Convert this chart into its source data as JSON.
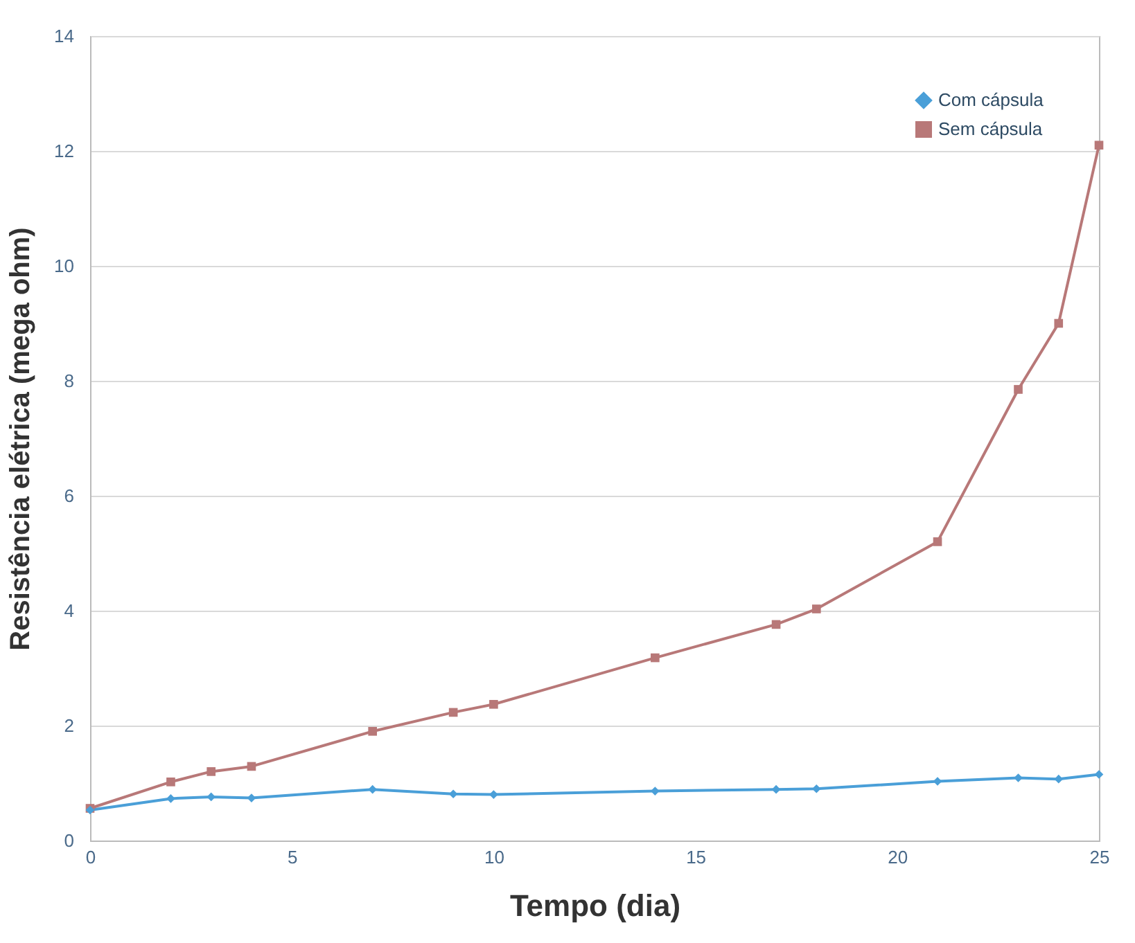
{
  "chart_data": {
    "type": "line",
    "xlabel": "Tempo (dia)",
    "ylabel": "Resistência elétrica (mega ohm)",
    "x": [
      0,
      2,
      3,
      4,
      7,
      9,
      10,
      14,
      17,
      18,
      21,
      23,
      24,
      25
    ],
    "series": [
      {
        "name": "Com cápsula",
        "color": "#4a9fd8",
        "marker": "diamond",
        "values": [
          0.53,
          0.73,
          0.76,
          0.74,
          0.89,
          0.81,
          0.8,
          0.86,
          0.89,
          0.9,
          1.03,
          1.09,
          1.07,
          1.15
        ]
      },
      {
        "name": "Sem cápsula",
        "color": "#b87878",
        "marker": "square",
        "values": [
          0.56,
          1.02,
          1.2,
          1.29,
          1.9,
          2.23,
          2.37,
          3.18,
          3.76,
          4.03,
          5.2,
          7.85,
          9.0,
          12.1
        ]
      }
    ],
    "xlim": [
      0,
      25
    ],
    "xticks": [
      0,
      5,
      10,
      15,
      20,
      25
    ],
    "ylim": [
      0,
      14
    ],
    "yticks": [
      0,
      2,
      4,
      6,
      8,
      10,
      12,
      14
    ],
    "grid": "y",
    "legend": "top right",
    "line_style": "solid"
  }
}
